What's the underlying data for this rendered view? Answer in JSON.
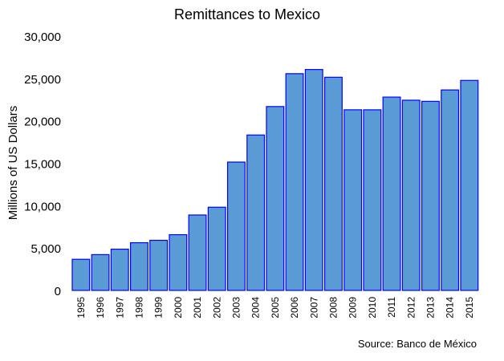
{
  "chart_data": {
    "type": "bar",
    "title": "Remittances to Mexico",
    "ylabel": "Millions of US Dollars",
    "xlabel": "",
    "source": "Source: Banco de México",
    "ylim": [
      0,
      30000
    ],
    "yticks": [
      0,
      5000,
      10000,
      15000,
      20000,
      25000,
      30000
    ],
    "ytick_labels": [
      "0",
      "5,000",
      "10,000",
      "15,000",
      "20,000",
      "25,000",
      "30,000"
    ],
    "grid": false,
    "categories": [
      "1995",
      "1996",
      "1997",
      "1998",
      "1999",
      "2000",
      "2001",
      "2002",
      "2003",
      "2004",
      "2005",
      "2006",
      "2007",
      "2008",
      "2009",
      "2010",
      "2011",
      "2012",
      "2013",
      "2014",
      "2015"
    ],
    "values": [
      3670,
      4220,
      4865,
      5627,
      5910,
      6573,
      8895,
      9814,
      15139,
      18332,
      21688,
      25567,
      26059,
      25145,
      21306,
      21304,
      22803,
      22438,
      22303,
      23647,
      24771
    ],
    "colors": {
      "bar_fill": "#5b9bd5",
      "bar_edge": "#0000ff"
    }
  }
}
